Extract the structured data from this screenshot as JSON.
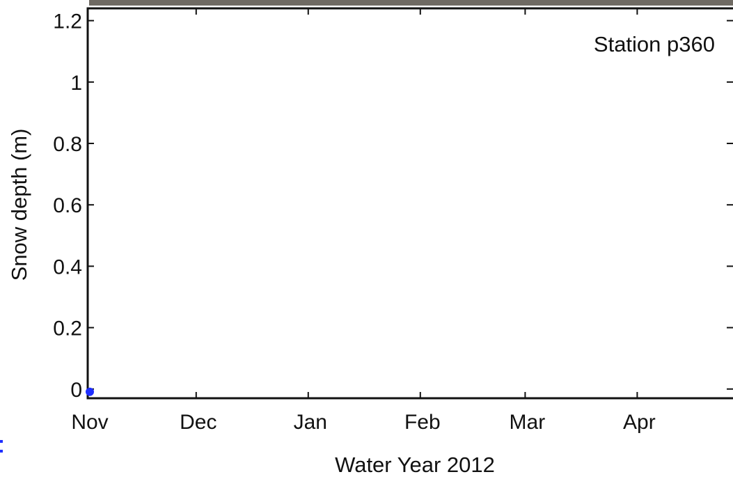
{
  "chart_data": {
    "type": "scatter",
    "title": "",
    "xlabel": "Water Year 2012",
    "ylabel": "Snow depth (m)",
    "annotation": "Station p360",
    "x_ticks": [
      "Nov",
      "Dec",
      "Jan",
      "Feb",
      "Mar",
      "Apr"
    ],
    "x_tick_dates": [
      "2011-11-01",
      "2011-12-01",
      "2012-01-01",
      "2012-02-01",
      "2012-03-01",
      "2012-04-01"
    ],
    "xlim": [
      "2011-11-01",
      "2012-04-30"
    ],
    "y_ticks": [
      "0",
      "0.2",
      "0.4",
      "0.6",
      "0.8",
      "1",
      "1.2"
    ],
    "ylim": [
      -0.03,
      1.24
    ],
    "grid": false,
    "series": [
      {
        "color": "#1f2fff",
        "points": [
          {
            "x": "2011-11-01",
            "y": 0.0
          }
        ]
      }
    ]
  },
  "colors": {
    "axis": "#111111",
    "marker": "#1f2fff",
    "background": "#ffffff"
  }
}
